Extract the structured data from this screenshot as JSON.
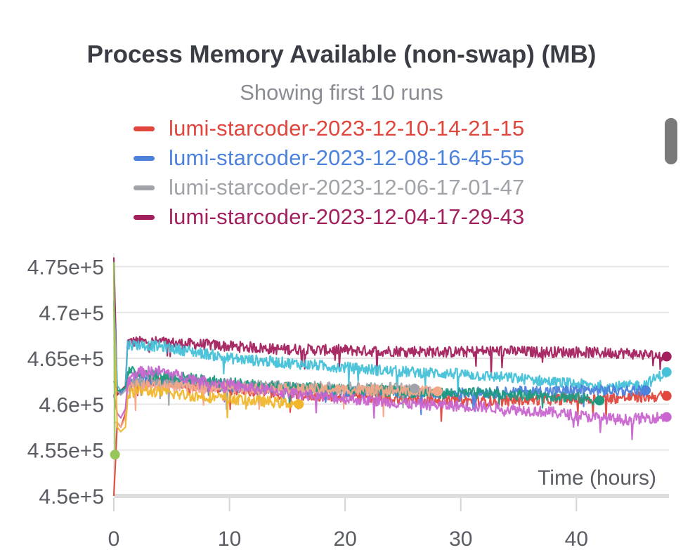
{
  "chart_data": {
    "type": "line",
    "title": "Process Memory Available (non-swap) (MB)",
    "subtitle": "Showing first 10 runs",
    "xlabel": "Time (hours)",
    "ylabel": "",
    "xlim": [
      0,
      48
    ],
    "ylim": [
      450000,
      476500
    ],
    "x_ticks": [
      0,
      10,
      20,
      30,
      40
    ],
    "x_tick_labels": [
      "0",
      "10",
      "20",
      "30",
      "40"
    ],
    "y_ticks": [
      450000,
      455000,
      460000,
      465000,
      470000,
      475000
    ],
    "y_tick_labels": [
      "4.5e+5",
      "4.55e+5",
      "4.6e+5",
      "4.65e+5",
      "4.7e+5",
      "4.75e+5"
    ],
    "grid": true,
    "legend_position": "top",
    "legend": [
      {
        "name": "lumi-starcoder-2023-12-10-14-21-15",
        "color": "#e0463c"
      },
      {
        "name": "lumi-starcoder-2023-12-08-16-45-55",
        "color": "#4d82dc"
      },
      {
        "name": "lumi-starcoder-2023-12-06-17-01-47",
        "color": "#a0a3a8"
      },
      {
        "name": "lumi-starcoder-2023-12-04-17-29-43",
        "color": "#a3205e"
      }
    ],
    "series": [
      {
        "name": "lumi-starcoder-2023-12-04-17-29-43",
        "color": "#a3205e",
        "x": [
          0,
          0.3,
          0.6,
          1,
          1.2,
          2,
          4,
          6,
          8,
          10,
          12,
          14,
          16,
          18,
          20,
          22,
          24,
          26,
          28,
          30,
          32,
          34,
          36,
          38,
          40,
          42,
          44,
          46,
          47.8
        ],
        "y": [
          476000,
          461000,
          461500,
          462000,
          466800,
          466800,
          466800,
          466600,
          466500,
          466300,
          466200,
          466000,
          466000,
          465900,
          465900,
          465800,
          465800,
          465800,
          465700,
          465700,
          465800,
          465800,
          465700,
          465700,
          465700,
          465600,
          465600,
          465400,
          465200
        ]
      },
      {
        "name": "",
        "color": "#45c1d8",
        "x": [
          0,
          0.3,
          0.6,
          1,
          1.2,
          2,
          4,
          6,
          8,
          10,
          12,
          14,
          16,
          18,
          20,
          22,
          24,
          26,
          28,
          30,
          32,
          34,
          36,
          38,
          40,
          42,
          44,
          46,
          47.8
        ],
        "y": [
          471300,
          462000,
          461500,
          461800,
          466500,
          466500,
          466300,
          465900,
          465500,
          465000,
          464800,
          464600,
          464400,
          464200,
          464000,
          463800,
          463600,
          463500,
          463400,
          463300,
          463100,
          462900,
          462700,
          462400,
          462200,
          462000,
          461900,
          462200,
          463500
        ]
      },
      {
        "name": "lumi-starcoder-2023-12-10-14-21-15",
        "color": "#e0463c",
        "x": [
          0,
          0.3,
          0.6,
          1,
          1.2,
          2,
          4,
          6,
          8,
          10,
          12,
          14,
          16,
          18,
          20,
          22,
          24,
          26,
          28,
          30,
          32,
          34,
          36,
          38,
          40,
          42,
          44,
          46,
          47.8
        ],
        "y": [
          450000,
          458000,
          457500,
          459000,
          462000,
          462300,
          462500,
          462200,
          461900,
          461600,
          461400,
          461200,
          461000,
          460900,
          460800,
          460700,
          460600,
          460500,
          460500,
          460400,
          460300,
          460400,
          460500,
          460500,
          460600,
          460600,
          460700,
          460800,
          460900
        ]
      },
      {
        "name": "lumi-starcoder-2023-12-08-16-45-55",
        "color": "#4d82dc",
        "x": [
          0,
          0.3,
          0.6,
          1,
          1.2,
          2,
          4,
          6,
          8,
          10,
          12,
          14,
          16,
          18,
          20,
          22,
          24,
          26,
          28,
          30,
          32,
          34,
          36,
          38,
          40,
          42,
          44,
          46
        ],
        "y": [
          461000,
          461500,
          461200,
          461800,
          462500,
          462600,
          462500,
          462300,
          462100,
          461900,
          461800,
          461700,
          461600,
          461500,
          461400,
          461400,
          461300,
          461300,
          461200,
          461200,
          461300,
          461300,
          461400,
          461400,
          461500,
          461500,
          461500,
          461500
        ]
      },
      {
        "name": "lumi-starcoder-2023-12-06-17-01-47",
        "color": "#a0a3a8",
        "x": [
          0,
          0.3,
          0.6,
          1,
          1.2,
          2,
          4,
          6,
          8,
          10,
          12,
          14,
          16,
          18,
          20,
          22,
          24,
          26
        ],
        "y": [
          461000,
          461500,
          461000,
          461500,
          462300,
          462500,
          462400,
          462300,
          462200,
          462100,
          462000,
          462000,
          461900,
          461900,
          461900,
          461800,
          461800,
          461700
        ]
      },
      {
        "name": "",
        "color": "#1d9a80",
        "x": [
          0,
          0.3,
          0.6,
          1,
          1.2,
          2,
          4,
          6,
          8,
          10,
          12,
          14,
          16,
          18,
          20,
          22,
          24,
          26,
          28,
          30,
          32,
          34,
          36,
          38,
          40,
          42
        ],
        "y": [
          462500,
          461500,
          461500,
          461800,
          463500,
          463500,
          463200,
          462900,
          462600,
          462300,
          462100,
          461900,
          461800,
          461700,
          461600,
          461500,
          461400,
          461300,
          461200,
          461200,
          461200,
          461100,
          461000,
          460900,
          460700,
          460400
        ]
      },
      {
        "name": "",
        "color": "#f5a788",
        "x": [
          0,
          0.3,
          0.6,
          1,
          1.2,
          2,
          4,
          6,
          8,
          10,
          12,
          14,
          16,
          18,
          20,
          22,
          24,
          26,
          28
        ],
        "y": [
          458000,
          458000,
          457500,
          458500,
          461800,
          462000,
          462000,
          461900,
          461800,
          461800,
          461700,
          461700,
          461600,
          461600,
          461600,
          461500,
          461500,
          461400,
          461400
        ]
      },
      {
        "name": "",
        "color": "#c966cf",
        "x": [
          0,
          0.3,
          0.6,
          1,
          1.2,
          2,
          4,
          6,
          8,
          10,
          12,
          14,
          16,
          18,
          20,
          22,
          24,
          26,
          28,
          30,
          32,
          34,
          36,
          38,
          40,
          42,
          44,
          46,
          47.8
        ],
        "y": [
          461000,
          459000,
          458500,
          459500,
          462500,
          463500,
          463600,
          463000,
          462500,
          462100,
          461700,
          461400,
          461100,
          460800,
          460600,
          460400,
          460200,
          460000,
          459900,
          459800,
          459700,
          459500,
          459300,
          459100,
          458800,
          458500,
          458300,
          458500,
          458600
        ]
      },
      {
        "name": "",
        "color": "#f0b62c",
        "x": [
          0,
          0.3,
          0.6,
          1,
          1.2,
          2,
          4,
          6,
          8,
          10,
          12,
          14,
          16
        ],
        "y": [
          470500,
          457500,
          457000,
          457500,
          461000,
          461500,
          461300,
          461000,
          460800,
          460600,
          460400,
          460200,
          460000
        ]
      },
      {
        "name": "",
        "color": "#97c659",
        "x": [
          0,
          0.1
        ],
        "y": [
          475500,
          454500
        ]
      }
    ]
  }
}
